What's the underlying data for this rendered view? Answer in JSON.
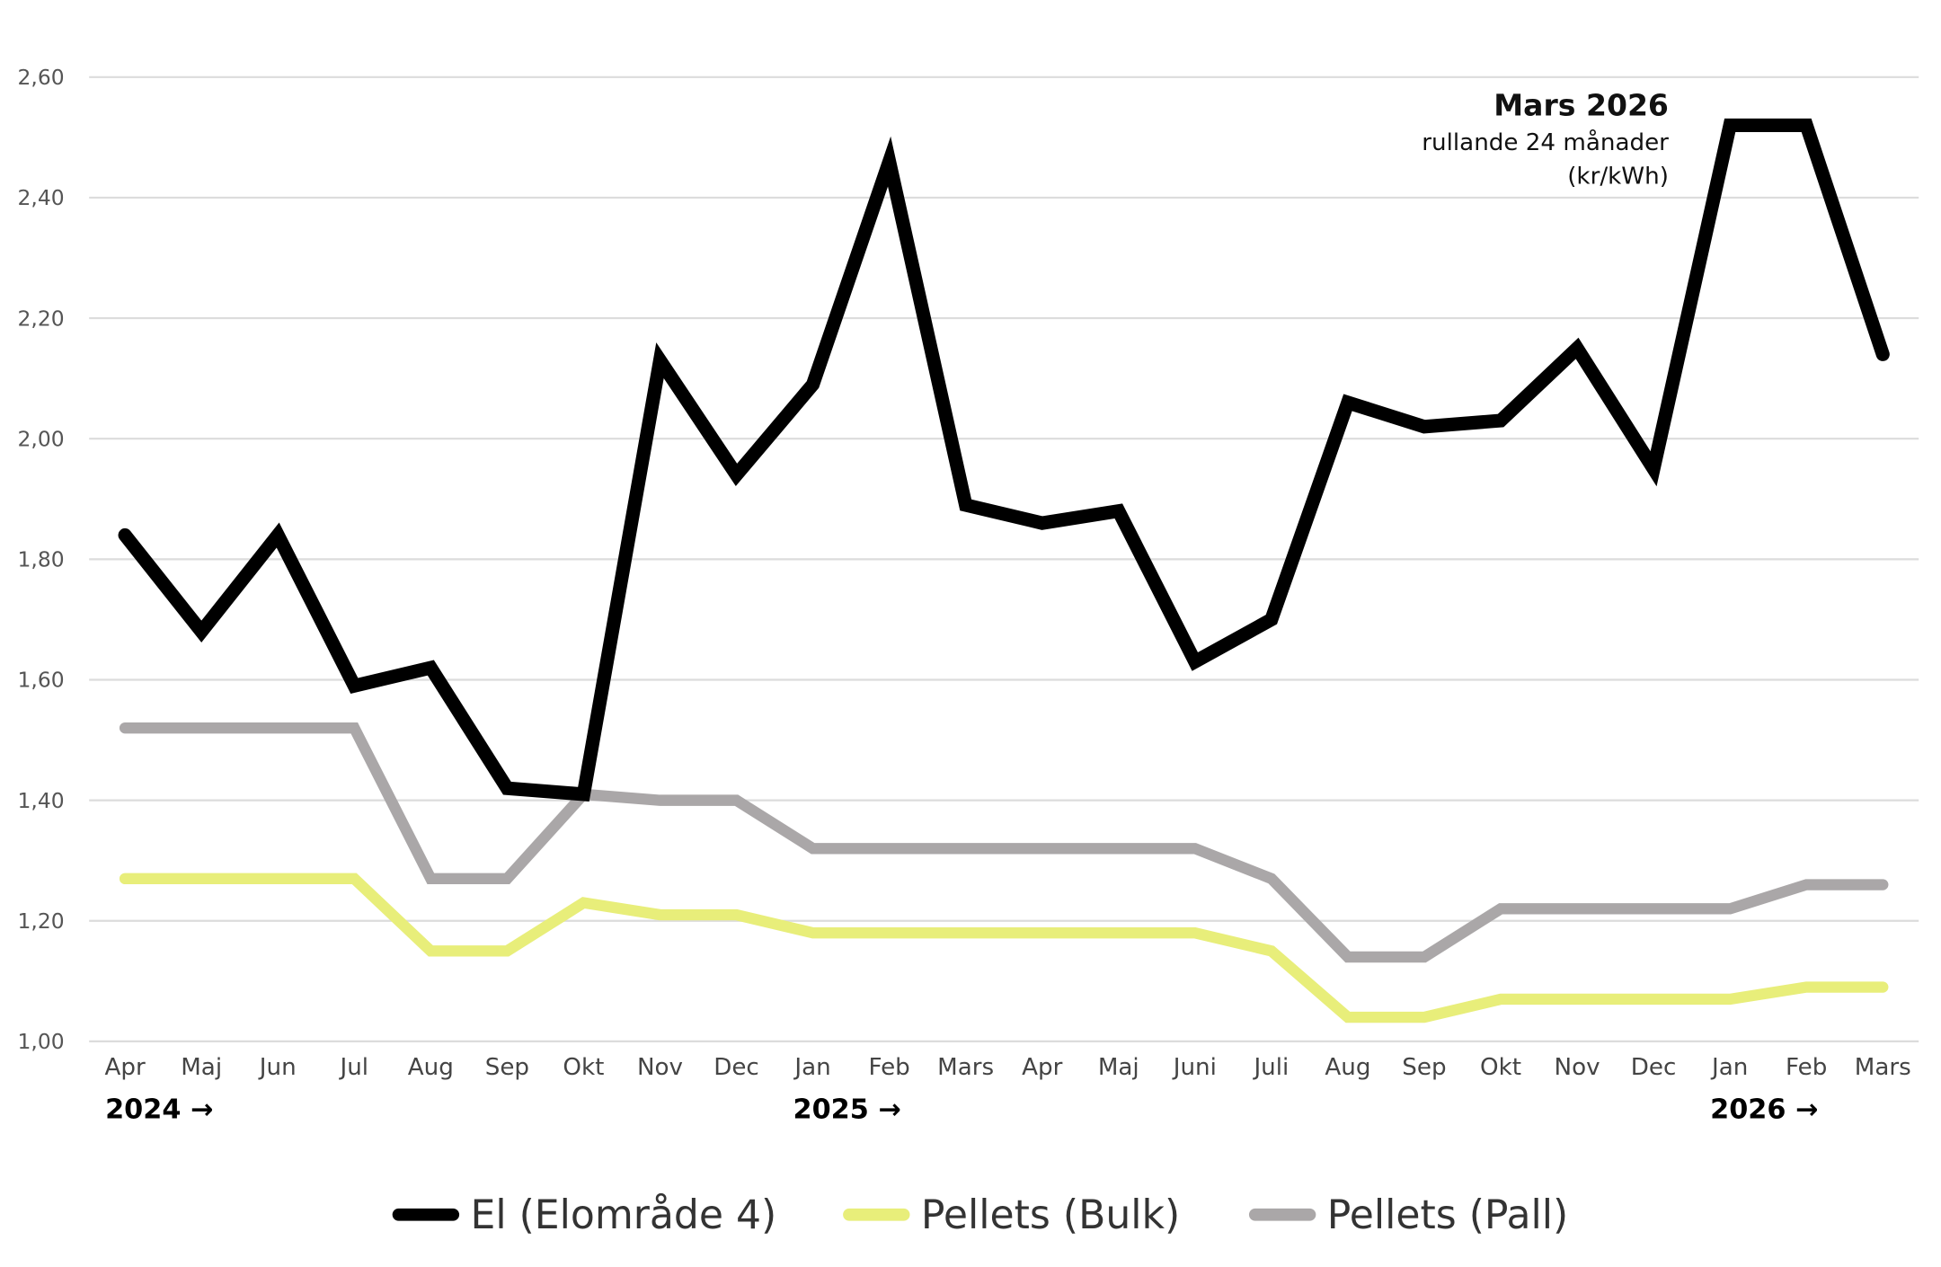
{
  "chart_data": {
    "type": "line",
    "title": "",
    "annotation": {
      "title": "Mars 2026",
      "line1": "rullande 24 månader",
      "line2": "(kr/kWh)"
    },
    "xlabel": "",
    "ylabel": "",
    "ylim": [
      1.0,
      2.6
    ],
    "yticks": [
      "1,00",
      "1,20",
      "1,40",
      "1,60",
      "1,80",
      "2,00",
      "2,20",
      "2,40",
      "2,60"
    ],
    "ytick_values": [
      1.0,
      1.2,
      1.4,
      1.6,
      1.8,
      2.0,
      2.2,
      2.4,
      2.6
    ],
    "grid": true,
    "legend_position": "bottom",
    "categories": [
      "Apr",
      "Maj",
      "Jun",
      "Jul",
      "Aug",
      "Sep",
      "Okt",
      "Nov",
      "Dec",
      "Jan",
      "Feb",
      "Mars",
      "Apr",
      "Maj",
      "Juni",
      "Juli",
      "Aug",
      "Sep",
      "Okt",
      "Nov",
      "Dec",
      "Jan",
      "Feb",
      "Mars"
    ],
    "year_markers": [
      {
        "label": "2024 →",
        "category_index": 0
      },
      {
        "label": "2025 →",
        "category_index": 9
      },
      {
        "label": "2026 →",
        "category_index": 21
      }
    ],
    "series": [
      {
        "name": "El (Elområde 4)",
        "color": "#000000",
        "values": [
          1.84,
          1.68,
          1.84,
          1.59,
          1.62,
          1.42,
          1.41,
          2.13,
          1.94,
          2.09,
          2.46,
          1.89,
          1.86,
          1.88,
          1.63,
          1.7,
          2.06,
          2.02,
          2.03,
          2.15,
          1.95,
          2.52,
          2.52,
          2.14
        ]
      },
      {
        "name": "Pellets (Bulk)",
        "color": "#e8ee7a",
        "values": [
          1.27,
          1.27,
          1.27,
          1.27,
          1.15,
          1.15,
          1.23,
          1.21,
          1.21,
          1.18,
          1.18,
          1.18,
          1.18,
          1.18,
          1.18,
          1.15,
          1.04,
          1.04,
          1.07,
          1.07,
          1.07,
          1.07,
          1.09,
          1.09
        ]
      },
      {
        "name": "Pellets (Pall)",
        "color": "#aaa7a8",
        "values": [
          1.52,
          1.52,
          1.52,
          1.52,
          1.27,
          1.27,
          1.41,
          1.4,
          1.4,
          1.32,
          1.32,
          1.32,
          1.32,
          1.32,
          1.32,
          1.27,
          1.14,
          1.14,
          1.22,
          1.22,
          1.22,
          1.22,
          1.26,
          1.26
        ]
      }
    ]
  }
}
